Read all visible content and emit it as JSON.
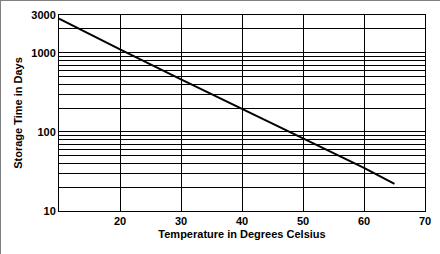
{
  "chart_data": {
    "type": "line",
    "xlabel": "Temperature in Degrees Celsius",
    "ylabel": "Storage Time in Days",
    "x": [
      10,
      20,
      30,
      40,
      50,
      60,
      65
    ],
    "values": [
      2700,
      1100,
      460,
      195,
      82,
      35,
      22
    ],
    "color": "#000000",
    "xlim": [
      10,
      70
    ],
    "xticks": [
      20,
      30,
      40,
      50,
      60,
      70
    ],
    "ylim": [
      10,
      3000
    ],
    "yticks": [
      10,
      100,
      1000,
      3000
    ],
    "log": "y",
    "grid": true
  }
}
